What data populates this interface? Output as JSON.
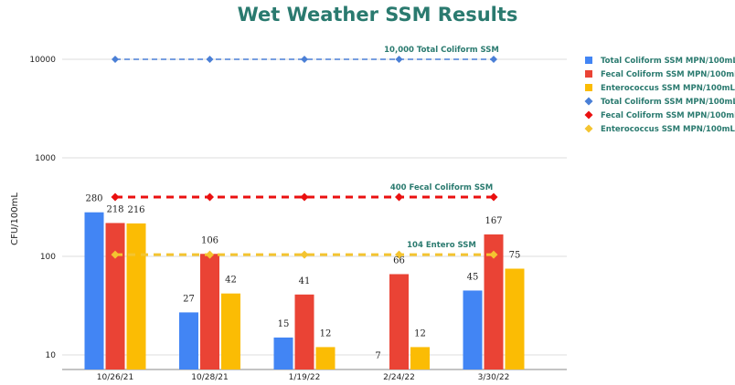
{
  "chart_data": {
    "type": "bar",
    "title": "Wet Weather SSM Results",
    "ylabel": "CFU/100mL",
    "xlabel": "",
    "yscale": "log",
    "ylim": [
      7,
      20000
    ],
    "yticks": [
      10,
      100,
      1000,
      10000
    ],
    "grid": true,
    "legend_position": "right",
    "categories": [
      "10/26/21",
      "10/28/21",
      "1/19/22",
      "2/24/22",
      "3/30/22"
    ],
    "series": [
      {
        "name": "Total Coliform SSM MPN/100mL",
        "kind": "bar",
        "color": "#4285f4",
        "values": [
          280,
          27,
          15,
          7,
          45
        ]
      },
      {
        "name": "Fecal Coliform SSM MPN/100mL",
        "kind": "bar",
        "color": "#ea4335",
        "values": [
          218,
          106,
          41,
          66,
          167
        ]
      },
      {
        "name": "Enterococcus SSM MPN/100mL",
        "kind": "bar",
        "color": "#fbbc04",
        "values": [
          216,
          42,
          12,
          12,
          75
        ]
      },
      {
        "name": "Total Coliform SSM MPN/100mL",
        "kind": "line",
        "color": "#4a7fd6",
        "values": [
          10000,
          10000,
          10000,
          10000,
          10000
        ]
      },
      {
        "name": "Fecal Coliform SSM MPN/100mL",
        "kind": "line",
        "color": "#ea1010",
        "values": [
          400,
          400,
          400,
          400,
          400
        ]
      },
      {
        "name": "Enterococcus SSM MPN/100mL",
        "kind": "line",
        "color": "#f4c430",
        "values": [
          104,
          104,
          104,
          104,
          104
        ]
      }
    ],
    "annotations": [
      {
        "text": "10,000 Total Coliform SSM",
        "y": 10000
      },
      {
        "text": "400 Fecal Coliform SSM",
        "y": 400
      },
      {
        "text": "104 Entero SSM",
        "y": 104
      }
    ]
  }
}
